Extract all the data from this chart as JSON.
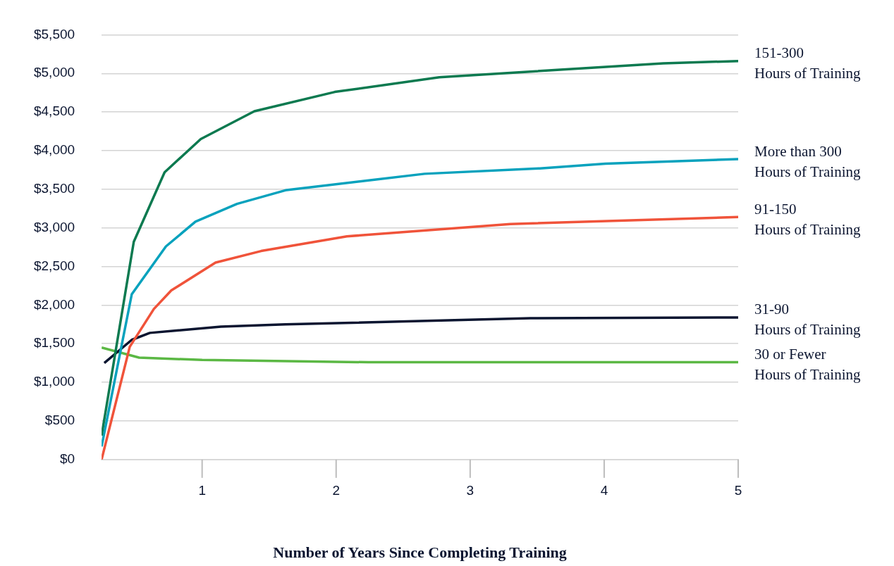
{
  "chart_data": {
    "type": "line",
    "xlabel": "Number of Years Since Completing Training",
    "xlim": [
      0.25,
      5
    ],
    "xticks": [
      1,
      2,
      3,
      4,
      5
    ],
    "ylim": [
      0,
      5500
    ],
    "yticks": [
      {
        "value": 0,
        "label": "$0"
      },
      {
        "value": 500,
        "label": "$500"
      },
      {
        "value": 1000,
        "label": "$1,000"
      },
      {
        "value": 1500,
        "label": "$1,500"
      },
      {
        "value": 2000,
        "label": "$2,000"
      },
      {
        "value": 2500,
        "label": "$2,500"
      },
      {
        "value": 3000,
        "label": "$3,000"
      },
      {
        "value": 3500,
        "label": "$3,500"
      },
      {
        "value": 4000,
        "label": "$4,000"
      },
      {
        "value": 4500,
        "label": "$4,500"
      },
      {
        "value": 5000,
        "label": "$5,000"
      },
      {
        "value": 5500,
        "label": "$5,500"
      }
    ],
    "grid": "y",
    "legend": false,
    "marker": "none",
    "line_style": "solid",
    "series": [
      {
        "name": "151-300\nHours of Training",
        "color": "#0d7a50",
        "x": [
          0.25,
          0.49,
          0.72,
          0.99,
          1.39,
          1.99,
          2.77,
          4.44,
          5
        ],
        "values": [
          310,
          2820,
          3720,
          4150,
          4510,
          4760,
          4950,
          5130,
          5160
        ]
      },
      {
        "name": "More than 300\nHours of Training",
        "color": "#08a2bd",
        "x": [
          0.25,
          0.475,
          0.73,
          0.95,
          1.26,
          1.63,
          2.66,
          3.52,
          4.01,
          5
        ],
        "values": [
          170,
          2140,
          2760,
          3080,
          3310,
          3490,
          3700,
          3770,
          3830,
          3890
        ]
      },
      {
        "name": "91-150\nHours of Training",
        "color": "#f0533a",
        "x": [
          0.25,
          0.46,
          0.64,
          0.77,
          1.1,
          1.44,
          2.08,
          3.3,
          5
        ],
        "values": [
          0,
          1460,
          1950,
          2190,
          2550,
          2700,
          2890,
          3050,
          3140
        ]
      },
      {
        "name": "31-90\nHours of Training",
        "color": "#0b1530",
        "x": [
          0.27,
          0.475,
          0.61,
          0.81,
          1.14,
          1.62,
          3.45,
          5
        ],
        "values": [
          1250,
          1550,
          1640,
          1670,
          1720,
          1750,
          1830,
          1840
        ]
      },
      {
        "name": "30 or Fewer\nHours of Training",
        "color": "#5bb844",
        "x": [
          0.25,
          0.53,
          1.0,
          2.24,
          5
        ],
        "values": [
          1450,
          1320,
          1290,
          1260,
          1260
        ]
      }
    ]
  }
}
